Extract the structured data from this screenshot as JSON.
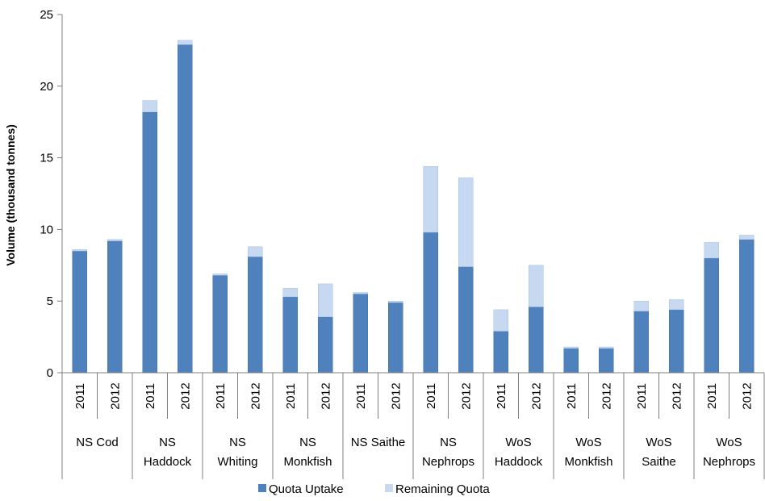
{
  "chart_data": {
    "type": "bar",
    "stacked": true,
    "ylabel": "Volume (thousand tonnes)",
    "xlabel": "",
    "ylim": [
      0,
      25
    ],
    "yticks": [
      0,
      5,
      10,
      15,
      20,
      25
    ],
    "grid": false,
    "legend_position": "bottom",
    "groups": [
      {
        "label": "NS Cod",
        "lines": [
          "NS Cod"
        ]
      },
      {
        "label": "NS Haddock",
        "lines": [
          "NS",
          "Haddock"
        ]
      },
      {
        "label": "NS Whiting",
        "lines": [
          "NS",
          "Whiting"
        ]
      },
      {
        "label": "NS Monkfish",
        "lines": [
          "NS",
          "Monkfish"
        ]
      },
      {
        "label": "NS Saithe",
        "lines": [
          "NS Saithe"
        ]
      },
      {
        "label": "NS Nephrops",
        "lines": [
          "NS",
          "Nephrops"
        ]
      },
      {
        "label": "WoS Haddock",
        "lines": [
          "WoS",
          "Haddock"
        ]
      },
      {
        "label": "WoS Monkfish",
        "lines": [
          "WoS",
          "Monkfish"
        ]
      },
      {
        "label": "WoS Saithe",
        "lines": [
          "WoS",
          "Saithe"
        ]
      },
      {
        "label": "WoS Nephrops",
        "lines": [
          "WoS",
          "Nephrops"
        ]
      }
    ],
    "years": [
      "2011",
      "2012"
    ],
    "series": [
      {
        "name": "Quota Uptake",
        "color": "#4f81bd",
        "values": [
          8.5,
          9.2,
          18.2,
          22.9,
          6.8,
          8.1,
          5.3,
          3.9,
          5.5,
          4.9,
          9.8,
          7.4,
          2.9,
          4.6,
          1.7,
          1.7,
          4.3,
          4.4,
          8.0,
          9.3
        ]
      },
      {
        "name": "Remaining Quota",
        "color": "#c6d9f1",
        "values": [
          0.1,
          0.1,
          0.8,
          0.3,
          0.1,
          0.7,
          0.6,
          2.3,
          0.1,
          0.1,
          4.6,
          6.2,
          1.5,
          2.9,
          0.1,
          0.1,
          0.7,
          0.7,
          1.1,
          0.3
        ]
      }
    ]
  }
}
